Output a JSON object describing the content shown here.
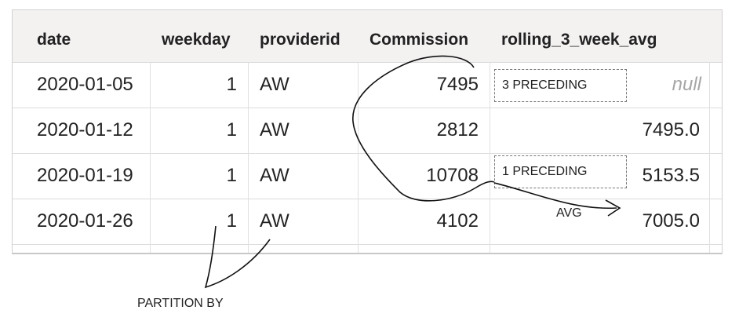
{
  "columns": [
    "date",
    "weekday",
    "providerid",
    "Commission",
    "rolling_3_week_avg"
  ],
  "rows": [
    {
      "date": "2020-01-05",
      "weekday": "1",
      "providerid": "AW",
      "commission": "7495",
      "rolling_avg": "null"
    },
    {
      "date": "2020-01-12",
      "weekday": "1",
      "providerid": "AW",
      "commission": "2812",
      "rolling_avg": "7495.0"
    },
    {
      "date": "2020-01-19",
      "weekday": "1",
      "providerid": "AW",
      "commission": "10708",
      "rolling_avg": "5153.5"
    },
    {
      "date": "2020-01-26",
      "weekday": "1",
      "providerid": "AW",
      "commission": "4102",
      "rolling_avg": "7005.0"
    }
  ],
  "annotations": {
    "three_preceding": "3 PRECEDING",
    "one_preceding": "1 PRECEDING",
    "avg": "AVG",
    "partition_by": "PARTITION BY"
  }
}
